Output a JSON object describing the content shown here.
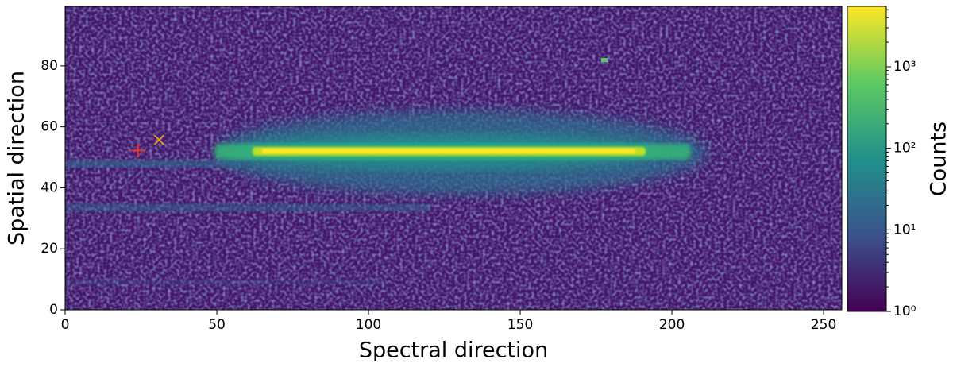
{
  "chart_data": {
    "type": "image",
    "x_label": "Spectral direction",
    "y_label": "Spatial direction",
    "xlim": [
      0,
      256
    ],
    "ylim": [
      0,
      99.5
    ],
    "xticks": [
      0,
      50,
      100,
      150,
      200,
      250
    ],
    "yticks": [
      0,
      20,
      40,
      60,
      80
    ],
    "colorbar": {
      "label": "Counts",
      "scale": "log",
      "clim": [
        1,
        5500
      ],
      "ticks": [
        {
          "value": 1,
          "label": "10⁰"
        },
        {
          "value": 10,
          "label": "10¹"
        },
        {
          "value": 100,
          "label": "10²"
        },
        {
          "value": 1000,
          "label": "10³"
        }
      ],
      "colors": [
        "#440154",
        "#3b528b",
        "#21918c",
        "#5ec962",
        "#fde725"
      ]
    },
    "series": [
      {
        "marker": "+",
        "color": "#e8352a",
        "x": [
          24
        ],
        "values": [
          52.3
        ]
      },
      {
        "marker": "x",
        "color": "#e3a21a",
        "x": [
          31
        ],
        "values": [
          55.7
        ]
      }
    ]
  }
}
